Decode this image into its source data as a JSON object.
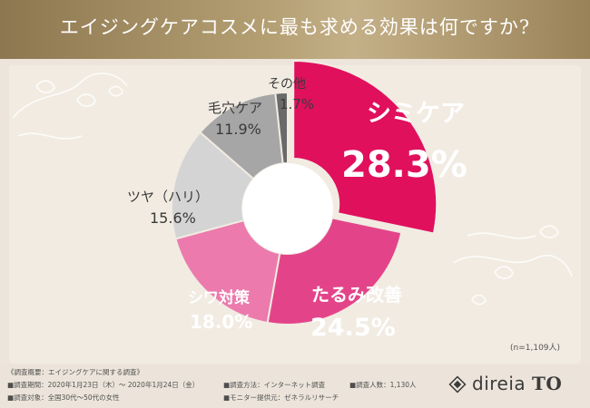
{
  "title": "エイジングケアコスメに最も求める効果は何ですか?",
  "sample_note": "(n=1,109人)",
  "chart_data": {
    "type": "pie",
    "title": "エイジングケアコスメに最も求める効果は何ですか?",
    "unit": "%",
    "slices": [
      {
        "label": "シミケア",
        "value": 28.3,
        "value_text": "28.3%",
        "color": "#e0105d"
      },
      {
        "label": "たるみ改善",
        "value": 24.5,
        "value_text": "24.5%",
        "color": "#e34489"
      },
      {
        "label": "シワ対策",
        "value": 18.0,
        "value_text": "18.0%",
        "color": "#ec7aac"
      },
      {
        "label": "ツヤ（ハリ）",
        "value": 15.6,
        "value_text": "15.6%",
        "color": "#d4d4d4"
      },
      {
        "label": "毛穴ケア",
        "value": 11.9,
        "value_text": "11.9%",
        "color": "#a6a6a6"
      },
      {
        "label": "その他",
        "value": 1.7,
        "value_text": "1.7%",
        "color": "#6a6a6a"
      }
    ]
  },
  "footer": {
    "survey_overview": "《調査概要：エイジングケアに関する調査》",
    "period": "■調査期間：2020年1月23日（木）〜 2020年1月24日（金）",
    "target": "■調査対象：全国30代〜50代の女性",
    "method": "■調査方法：インターネット調査",
    "provider": "■モニター提供元：ゼネラルリサーチ",
    "respondents": "■調査人数：1,130人"
  },
  "logo": {
    "text_light": "direia",
    "text_bold": "TO"
  },
  "colors": {
    "header": "#a38d63",
    "background": "#ede5db",
    "label_dark": "#3a3a3a",
    "label_white": "#ffffff",
    "label_accent": "#e0105d"
  }
}
